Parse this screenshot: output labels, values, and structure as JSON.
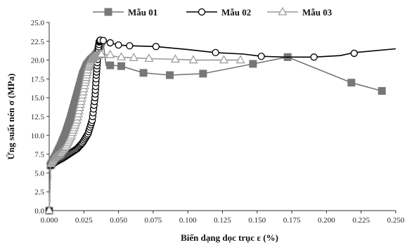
{
  "chart_data": {
    "type": "scatter",
    "xlabel": "Biến dạng dọc trục ε (%)",
    "ylabel": "Ứng suất nén σ (MPa)",
    "xlim": [
      0,
      0.25
    ],
    "ylim": [
      0,
      25
    ],
    "xticks": [
      "0.000",
      "0.025",
      "0.050",
      "0.075",
      "0.100",
      "0.125",
      "0.150",
      "0.175",
      "0.200",
      "0.225",
      "0.250"
    ],
    "yticks": [
      "0.0",
      "2.5",
      "5.0",
      "7.5",
      "10.0",
      "12.5",
      "15.0",
      "17.5",
      "20.0",
      "22.5",
      "25.0"
    ],
    "grid": false,
    "legend_position": "top",
    "series": [
      {
        "name": "Mẫu 01",
        "color": "#777777",
        "marker": "square",
        "x": [
          0.0,
          0.001,
          0.004,
          0.008,
          0.012,
          0.015,
          0.018,
          0.021,
          0.024,
          0.027,
          0.03,
          0.033,
          0.035,
          0.0365,
          0.038,
          0.039,
          0.041,
          0.046,
          0.052,
          0.068,
          0.087,
          0.111,
          0.147,
          0.172,
          0.218,
          0.24
        ],
        "y": [
          0.0,
          6.0,
          7.0,
          8.5,
          10.3,
          12.0,
          14.0,
          16.0,
          18.0,
          19.3,
          20.0,
          20.5,
          21.0,
          22.2,
          22.6,
          22.3,
          19.3,
          19.3,
          19.2,
          18.3,
          18.0,
          18.2,
          19.5,
          20.4,
          17.0,
          15.9
        ],
        "marked_points": [
          [
            0.0,
            0.0
          ],
          [
            0.044,
            19.3
          ],
          [
            0.052,
            19.2
          ],
          [
            0.068,
            18.3
          ],
          [
            0.087,
            18.0
          ],
          [
            0.111,
            18.2
          ],
          [
            0.147,
            19.5
          ],
          [
            0.172,
            20.4
          ],
          [
            0.218,
            17.0
          ],
          [
            0.24,
            15.9
          ]
        ]
      },
      {
        "name": "Mẫu 02",
        "color": "#000000",
        "marker": "circle",
        "x": [
          0.0,
          0.001,
          0.005,
          0.01,
          0.015,
          0.02,
          0.024,
          0.028,
          0.031,
          0.033,
          0.034,
          0.035,
          0.036,
          0.037,
          0.04,
          0.044,
          0.05,
          0.058,
          0.077,
          0.1,
          0.12,
          0.14,
          0.153,
          0.17,
          0.191,
          0.21,
          0.22,
          0.25
        ],
        "y": [
          0.0,
          6.0,
          6.5,
          7.0,
          7.6,
          8.2,
          9.0,
          10.2,
          12.0,
          15.0,
          18.0,
          20.5,
          22.4,
          22.7,
          22.6,
          22.3,
          22.0,
          21.9,
          21.8,
          21.4,
          21.0,
          20.8,
          20.5,
          20.4,
          20.4,
          20.6,
          21.0,
          21.5
        ],
        "marked_points": [
          [
            0.0,
            0.0
          ],
          [
            0.039,
            22.6
          ],
          [
            0.044,
            22.3
          ],
          [
            0.05,
            22.0
          ],
          [
            0.058,
            21.9
          ],
          [
            0.077,
            21.8
          ],
          [
            0.12,
            21.0
          ],
          [
            0.153,
            20.5
          ],
          [
            0.191,
            20.4
          ],
          [
            0.22,
            20.9
          ]
        ]
      },
      {
        "name": "Mẫu 03",
        "color": "#999999",
        "marker": "triangle",
        "x": [
          0.0,
          0.001,
          0.004,
          0.008,
          0.012,
          0.016,
          0.02,
          0.023,
          0.026,
          0.028,
          0.03,
          0.033,
          0.036,
          0.038,
          0.042,
          0.05,
          0.061,
          0.072,
          0.091,
          0.104,
          0.126,
          0.138
        ],
        "y": [
          0.0,
          6.2,
          7.0,
          7.6,
          8.5,
          10.0,
          12.0,
          14.5,
          17.0,
          19.0,
          20.0,
          20.5,
          20.7,
          20.8,
          20.7,
          20.4,
          20.3,
          20.2,
          20.1,
          20.0,
          20.0,
          20.0
        ],
        "marked_points": [
          [
            0.0,
            0.0
          ],
          [
            0.044,
            20.7
          ],
          [
            0.052,
            20.4
          ],
          [
            0.061,
            20.3
          ],
          [
            0.072,
            20.2
          ],
          [
            0.091,
            20.1
          ],
          [
            0.104,
            20.0
          ],
          [
            0.126,
            20.0
          ],
          [
            0.138,
            20.0
          ]
        ]
      }
    ]
  }
}
